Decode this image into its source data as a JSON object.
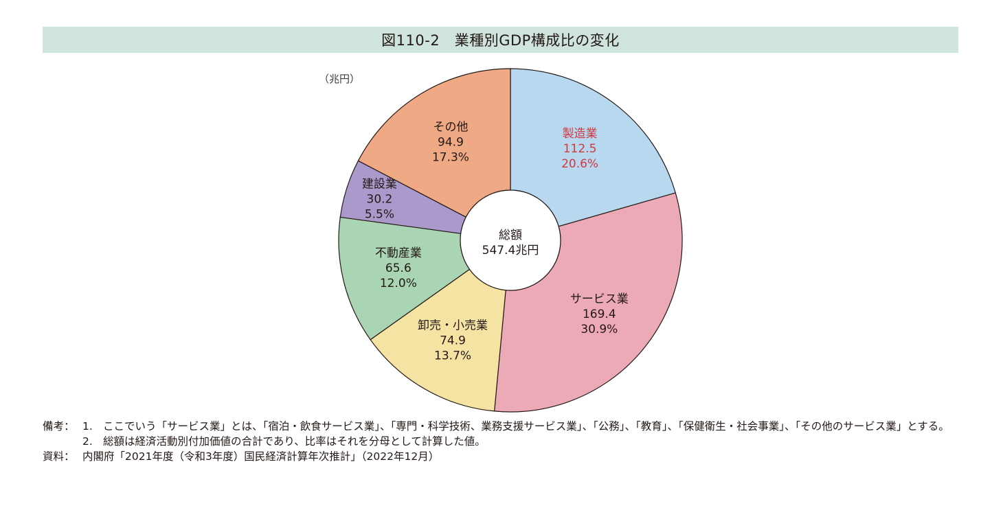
{
  "title": "図110-2　業種別GDP構成比の変化",
  "unit_label": "（兆円）",
  "chart_data": {
    "type": "pie",
    "donut": true,
    "title": "図110-2　業種別GDP構成比の変化",
    "unit": "兆円",
    "center": {
      "label": "総額",
      "value": "547.4兆円"
    },
    "slices": [
      {
        "name": "製造業",
        "value": 112.5,
        "value_label": "112.5",
        "percent": 20.6,
        "percent_label": "20.6%",
        "color": "#b8d8ef",
        "text_color": "#d0393f"
      },
      {
        "name": "サービス業",
        "value": 169.4,
        "value_label": "169.4",
        "percent": 30.9,
        "percent_label": "30.9%",
        "color": "#ecaab6",
        "text_color": "#231815"
      },
      {
        "name": "卸売・小売業",
        "value": 74.9,
        "value_label": "74.9",
        "percent": 13.7,
        "percent_label": "13.7%",
        "color": "#f5e3a4",
        "text_color": "#231815"
      },
      {
        "name": "不動産業",
        "value": 65.6,
        "value_label": "65.6",
        "percent": 12.0,
        "percent_label": "12.0%",
        "color": "#a9d5b5",
        "text_color": "#231815"
      },
      {
        "name": "建設業",
        "value": 30.2,
        "value_label": "30.2",
        "percent": 5.5,
        "percent_label": "5.5%",
        "color": "#a99acb",
        "text_color": "#231815"
      },
      {
        "name": "その他",
        "value": 94.9,
        "value_label": "94.9",
        "percent": 17.3,
        "percent_label": "17.3%",
        "color": "#efaa85",
        "text_color": "#231815"
      }
    ]
  },
  "notes": {
    "head1": "備考：",
    "num1": "1.",
    "text1": "ここでいう「サービス業」とは、「宿泊・飲食サービス業」、「専門・科学技術、業務支援サービス業」、「公務」、「教育」、「保健衛生・社会事業」、「その他のサービス業」とする。",
    "num2": "2.",
    "text2": "総額は経済活動別付加価値の合計であり、比率はそれを分母として計算した値。",
    "head3": "資料：",
    "text3": "内閣府「2021年度（令和3年度）国民経済計算年次推計」（2022年12月）"
  }
}
